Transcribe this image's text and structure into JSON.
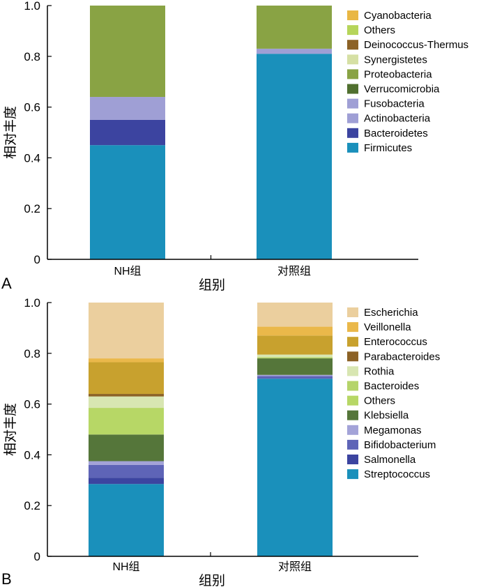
{
  "chart_data": [
    {
      "panel_label": "A",
      "type": "bar",
      "stacked": true,
      "categories": [
        "NH组",
        "对照组"
      ],
      "xlabel": "组别",
      "ylabel": "相对丰度",
      "ylim": [
        0,
        1.0
      ],
      "yticks": [
        "0",
        "0.2",
        "0.4",
        "0.6",
        "0.8",
        "1.0"
      ],
      "legend_position": "right",
      "series": [
        {
          "name": "Firmicutes",
          "color": "#1a90bb",
          "values": [
            0.45,
            0.81
          ]
        },
        {
          "name": "Bacteroidetes",
          "color": "#3c44a0",
          "values": [
            0.1,
            0.0
          ]
        },
        {
          "name": "Actinobacteria",
          "color": "#9f9fd5",
          "values": [
            0.0,
            0.02
          ]
        },
        {
          "name": "Fusobacteria",
          "color": "#9f9fd5",
          "values": [
            0.09,
            0.0
          ]
        },
        {
          "name": "Verrucomicrobia",
          "color": "#50702f",
          "values": [
            0.0,
            0.0
          ]
        },
        {
          "name": "Proteobacteria",
          "color": "#89a344",
          "values": [
            0.36,
            0.17
          ]
        },
        {
          "name": "Synergistetes",
          "color": "#d6e0a4",
          "values": [
            0.0,
            0.0
          ]
        },
        {
          "name": "Deinococcus-Thermus",
          "color": "#8c6226",
          "values": [
            0.0,
            0.0
          ]
        },
        {
          "name": "Others",
          "color": "#b6d55a",
          "values": [
            0.0,
            0.0
          ]
        },
        {
          "name": "Cyanobacteria",
          "color": "#e9b744",
          "values": [
            0.0,
            0.0
          ]
        }
      ]
    },
    {
      "panel_label": "B",
      "type": "bar",
      "stacked": true,
      "categories": [
        "NH组",
        "对照组"
      ],
      "xlabel": "组别",
      "ylabel": "相对丰度",
      "ylim": [
        0,
        1.0
      ],
      "yticks": [
        "0",
        "0.2",
        "0.4",
        "0.6",
        "0.8",
        "1.0"
      ],
      "legend_position": "right",
      "series": [
        {
          "name": "Streptococcus",
          "color": "#1a90bb",
          "values": [
            0.285,
            0.7
          ]
        },
        {
          "name": "Salmonella",
          "color": "#3c44a0",
          "values": [
            0.025,
            0.0
          ]
        },
        {
          "name": "Bifidobacterium",
          "color": "#5e64b7",
          "values": [
            0.05,
            0.01
          ]
        },
        {
          "name": "Megamonas",
          "color": "#a3a3d8",
          "values": [
            0.015,
            0.005
          ]
        },
        {
          "name": "Klebsiella",
          "color": "#55763a",
          "values": [
            0.105,
            0.065
          ]
        },
        {
          "name": "Others",
          "color": "#b7d766",
          "values": [
            0.105,
            0.0
          ]
        },
        {
          "name": "Bacteroides",
          "color": "#b5d46a",
          "values": [
            0.0,
            0.005
          ]
        },
        {
          "name": "Rothia",
          "color": "#d8e6b2",
          "values": [
            0.045,
            0.01
          ]
        },
        {
          "name": "Parabacteroides",
          "color": "#8c6226",
          "values": [
            0.01,
            0.0
          ]
        },
        {
          "name": "Enterococcus",
          "color": "#c8a12e",
          "values": [
            0.125,
            0.075
          ]
        },
        {
          "name": "Veillonella",
          "color": "#eab84a",
          "values": [
            0.015,
            0.035
          ]
        },
        {
          "name": "Escherichia",
          "color": "#ebcf9e",
          "values": [
            0.22,
            0.095
          ]
        }
      ]
    }
  ]
}
